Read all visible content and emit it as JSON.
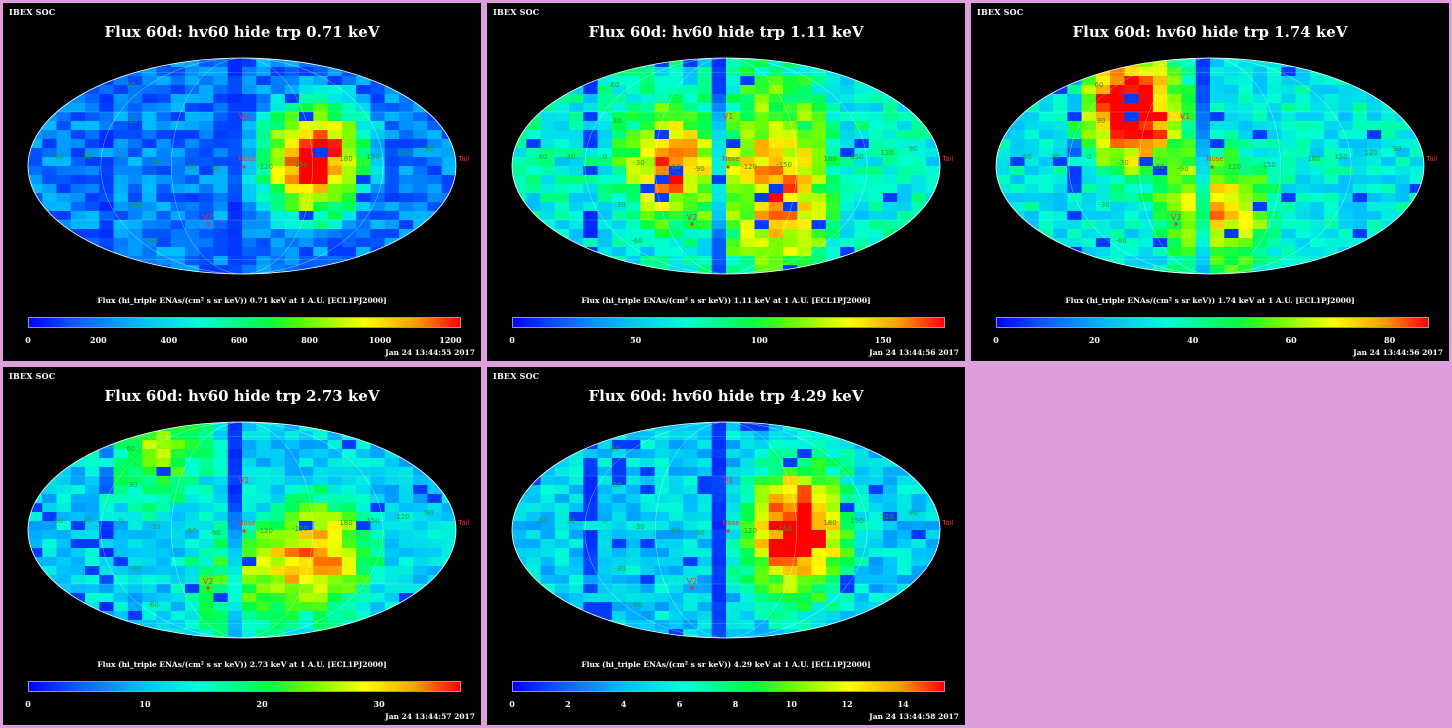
{
  "panels": [
    {
      "corner_label": "IBEX SOC",
      "title": "Flux 60d: hv60 hide trp 0.71 keV",
      "caption": "Flux (hi_triple ENAs/(cm² s sr keV)) 0.71 keV at 1 A.U. [ECL1PJ2000]",
      "colorbar_ticks": [
        "0",
        "200",
        "400",
        "600",
        "800",
        "1000",
        "1200"
      ],
      "colorbar_range": [
        0,
        1230
      ],
      "timestamp": "Jan 24 13:44:55 2017",
      "markers": {
        "v1": "V1",
        "v2": "V2",
        "nose": "Nose",
        "tail": "Tail"
      },
      "grid_labels": [
        "60",
        "30",
        "0",
        "-30",
        "-60",
        "-90",
        "-120",
        "-150",
        "180",
        "150",
        "120",
        "90",
        "60",
        "30",
        "-30",
        "-60"
      ]
    },
    {
      "corner_label": "IBEX SOC",
      "title": "Flux 60d: hv60 hide trp 1.11 keV",
      "caption": "Flux (hi_triple ENAs/(cm² s sr keV)) 1.11 keV at 1 A.U. [ECL1PJ2000]",
      "colorbar_ticks": [
        "0",
        "50",
        "100",
        "150"
      ],
      "colorbar_range": [
        0,
        175
      ],
      "timestamp": "Jan 24 13:44:56 2017",
      "markers": {
        "v1": "V1",
        "v2": "V2",
        "nose": "Nose",
        "tail": "Tail"
      },
      "grid_labels": [
        "60",
        "30",
        "0",
        "-30",
        "-60",
        "-90",
        "-120",
        "-150",
        "180",
        "150",
        "120",
        "90",
        "60",
        "30",
        "-30",
        "-60"
      ]
    },
    {
      "corner_label": "IBEX SOC",
      "title": "Flux 60d: hv60 hide trp 1.74 keV",
      "caption": "Flux (hi_triple ENAs/(cm² s sr keV)) 1.74 keV at 1 A.U. [ECL1PJ2000]",
      "colorbar_ticks": [
        "0",
        "20",
        "40",
        "60",
        "80"
      ],
      "colorbar_range": [
        0,
        88
      ],
      "timestamp": "Jan 24 13:44:56 2017",
      "markers": {
        "v1": "V1",
        "v2": "V2",
        "nose": "Nose",
        "tail": "Tail"
      },
      "grid_labels": [
        "60",
        "30",
        "0",
        "-30",
        "-60",
        "-90",
        "-120",
        "-150",
        "180",
        "150",
        "120",
        "90",
        "60",
        "30",
        "-30",
        "-60"
      ]
    },
    {
      "corner_label": "IBEX SOC",
      "title": "Flux 60d: hv60 hide trp 2.73 keV",
      "caption": "Flux (hi_triple ENAs/(cm² s sr keV)) 2.73 keV at 1 A.U. [ECL1PJ2000]",
      "colorbar_ticks": [
        "0",
        "10",
        "20",
        "30"
      ],
      "colorbar_range": [
        0,
        37
      ],
      "timestamp": "Jan 24 13:44:57 2017",
      "markers": {
        "v1": "V1",
        "v2": "V2",
        "nose": "Nose",
        "tail": "Tail"
      },
      "grid_labels": [
        "60",
        "30",
        "0",
        "-30",
        "-60",
        "-90",
        "-120",
        "-150",
        "180",
        "150",
        "120",
        "90",
        "60",
        "30",
        "-30",
        "-60"
      ]
    },
    {
      "corner_label": "IBEX SOC",
      "title": "Flux 60d: hv60 hide trp 4.29 keV",
      "caption": "Flux (hi_triple ENAs/(cm² s sr keV)) 4.29 keV at 1 A.U. [ECL1PJ2000]",
      "colorbar_ticks": [
        "0",
        "2",
        "4",
        "6",
        "8",
        "10",
        "12",
        "14"
      ],
      "colorbar_range": [
        0,
        15.5
      ],
      "timestamp": "Jan 24 13:44:58 2017",
      "markers": {
        "v1": "V1",
        "v2": "V2",
        "nose": "Nose",
        "tail": "Tail"
      },
      "grid_labels": [
        "60",
        "30",
        "0",
        "-30",
        "-60",
        "-90",
        "-120",
        "-150",
        "180",
        "150",
        "120",
        "90",
        "60",
        "30",
        "-30",
        "-60"
      ]
    }
  ],
  "colors": {
    "background": "#dd9fdb",
    "panel": "#000000",
    "marker_red": "#ff2a2a",
    "grid_green": "#3b8f3b"
  }
}
